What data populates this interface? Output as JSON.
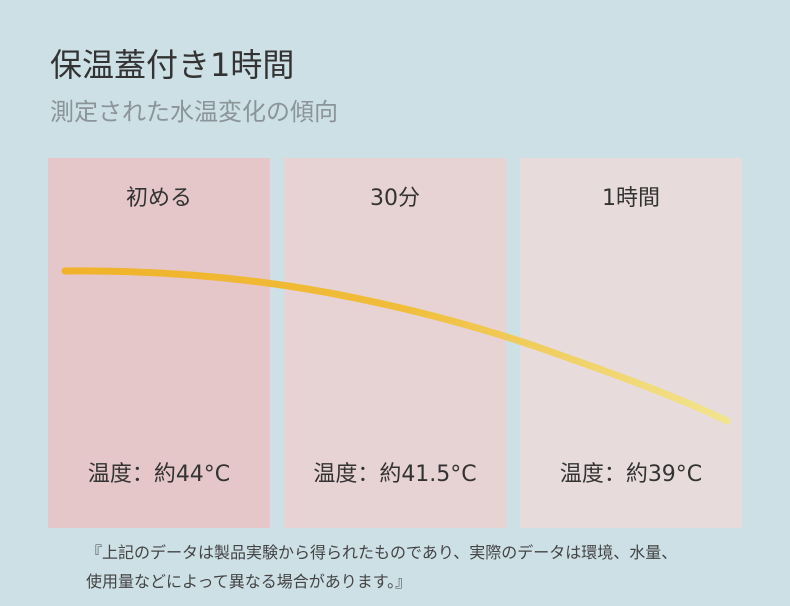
{
  "header": {
    "title": "保温蓋付き1時間",
    "subtitle": "測定された水温変化の傾向"
  },
  "panels": [
    {
      "label": "初める",
      "temperature": "温度：約44°C"
    },
    {
      "label": "30分",
      "temperature": "温度：約41.5°C"
    },
    {
      "label": "1時間",
      "temperature": "温度：約39°C"
    }
  ],
  "note": [
    "『上記のデータは製品実験から得られたものであり、実際のデータは環境、水量、",
    "使用量などによって異なる場合があります。』"
  ]
}
